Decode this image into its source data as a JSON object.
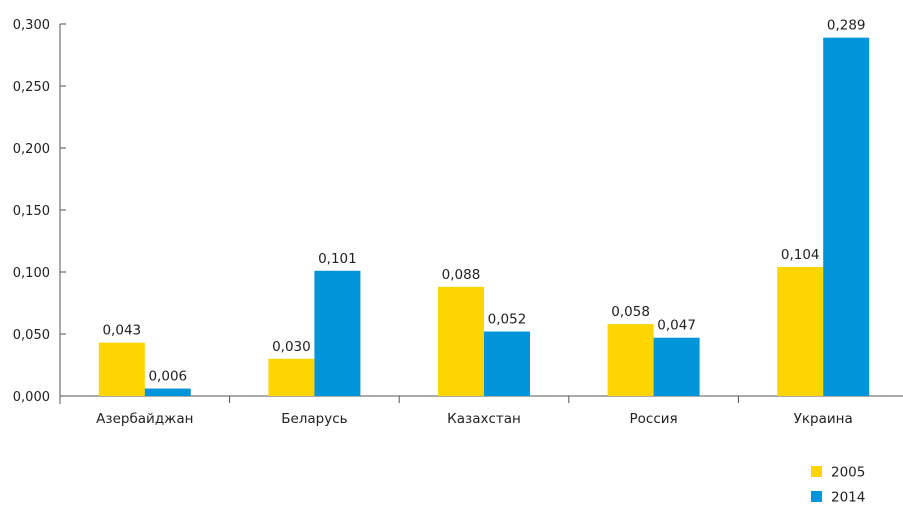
{
  "chart_data": {
    "type": "bar",
    "categories": [
      "Азербайджан",
      "Беларусь",
      "Казахстан",
      "Россия",
      "Украина"
    ],
    "series": [
      {
        "name": "2005",
        "color": "#FFD500",
        "values": [
          0.043,
          0.03,
          0.088,
          0.058,
          0.104
        ],
        "labels": [
          "0,043",
          "0,030",
          "0,088",
          "0,058",
          "0,104"
        ]
      },
      {
        "name": "2014",
        "color": "#0095D9",
        "values": [
          0.006,
          0.101,
          0.052,
          0.047,
          0.289
        ],
        "labels": [
          "0,006",
          "0,101",
          "0,052",
          "0,047",
          "0,289"
        ]
      }
    ],
    "ylim": [
      0,
      0.3
    ],
    "yticks": [
      0,
      0.05,
      0.1,
      0.15,
      0.2,
      0.25,
      0.3
    ],
    "ytick_labels": [
      "0,000",
      "0,050",
      "0,100",
      "0,150",
      "0,200",
      "0,250",
      "0,300"
    ],
    "title": "",
    "xlabel": "",
    "ylabel": "",
    "grid": false,
    "legend_position": "bottom-right"
  }
}
